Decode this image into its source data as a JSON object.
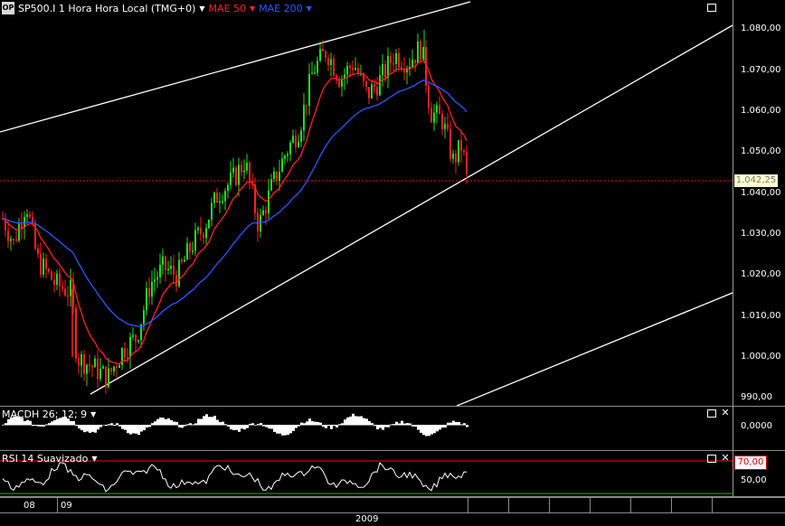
{
  "main": {
    "symbol": "SP500.I 1 Hora Hora Local (TMG+0)",
    "indicators": [
      {
        "label": "MAE 50",
        "color": "#ff2020"
      },
      {
        "label": "MAE 200",
        "color": "#2a58ff"
      }
    ],
    "price_marker": "1.042,25",
    "y_ticks": [
      "1.080,00",
      "1.070,00",
      "1.060,00",
      "1.050,00",
      "1.040,00",
      "1.030,00",
      "1.020,00",
      "1.010,00",
      "1.000,00",
      "990,00"
    ]
  },
  "macd": {
    "label": "MACDH 26; 12; 9",
    "y_tick": "0,0000"
  },
  "rsi": {
    "label": "RSI 14 Suavizado",
    "level_box": "70,00",
    "y_tick": "50,00"
  },
  "time_axis": {
    "month_labels": [
      "08",
      "09"
    ],
    "year_label": "2009"
  },
  "icons": {
    "maximize": "maximize-icon",
    "close": "close-icon",
    "dropdown": "chevron-down-icon"
  },
  "colors": {
    "up_candle": "#22dd22",
    "down_candle": "#ff2020",
    "ma50": "#ff2020",
    "ma200": "#2a58ff",
    "trendline": "#ffffff",
    "level_line": "#ff0000",
    "macd_hist": "#ffffff",
    "rsi_line": "#ffffff",
    "rsi_upper": "#ff0000",
    "rsi_lower": "#22aa22"
  }
}
